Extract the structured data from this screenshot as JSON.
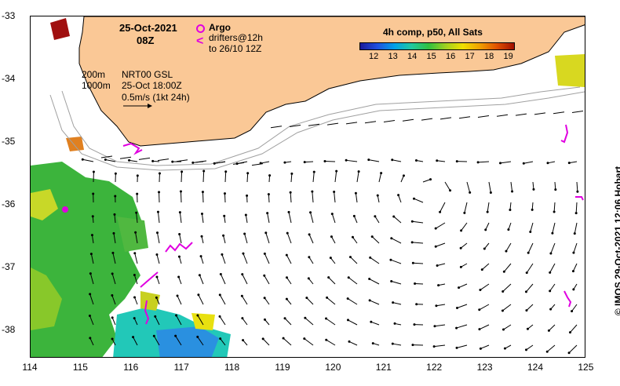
{
  "title": {
    "date": "25-Oct-2021",
    "hour": "08Z"
  },
  "legend": {
    "argo_label": "Argo",
    "drifters_label": "drifters@12h",
    "drifters_label2": "to 26/10 12Z",
    "isobath_200": "200m",
    "isobath_1000": "1000m",
    "product": "NRT00 GSL",
    "product_time": "25-Oct 18:00Z",
    "scale_label": "0.5m/s (1kt 24h)"
  },
  "colorbar": {
    "title": "4h comp, p50, All Sats",
    "ticks": [
      "12",
      "13",
      "14",
      "15",
      "16",
      "17",
      "18",
      "19"
    ],
    "colors": [
      "#1a1a9a",
      "#2050e0",
      "#00a0e8",
      "#20c8a0",
      "#30c040",
      "#a0d020",
      "#f0e000",
      "#f0a000",
      "#e05000",
      "#a01000"
    ]
  },
  "axes": {
    "lat_labels": [
      "-33",
      "-34",
      "-35",
      "-36",
      "-37",
      "-38"
    ],
    "lon_labels": [
      "114",
      "115",
      "116",
      "117",
      "118",
      "119",
      "120",
      "121",
      "122",
      "123",
      "124",
      "125"
    ]
  },
  "credit": "© IMOS 29-Oct-2021 12:06 Hobart",
  "colors": {
    "land": "#fac896",
    "drifter": "#e000e0",
    "arrow": "#000000"
  }
}
